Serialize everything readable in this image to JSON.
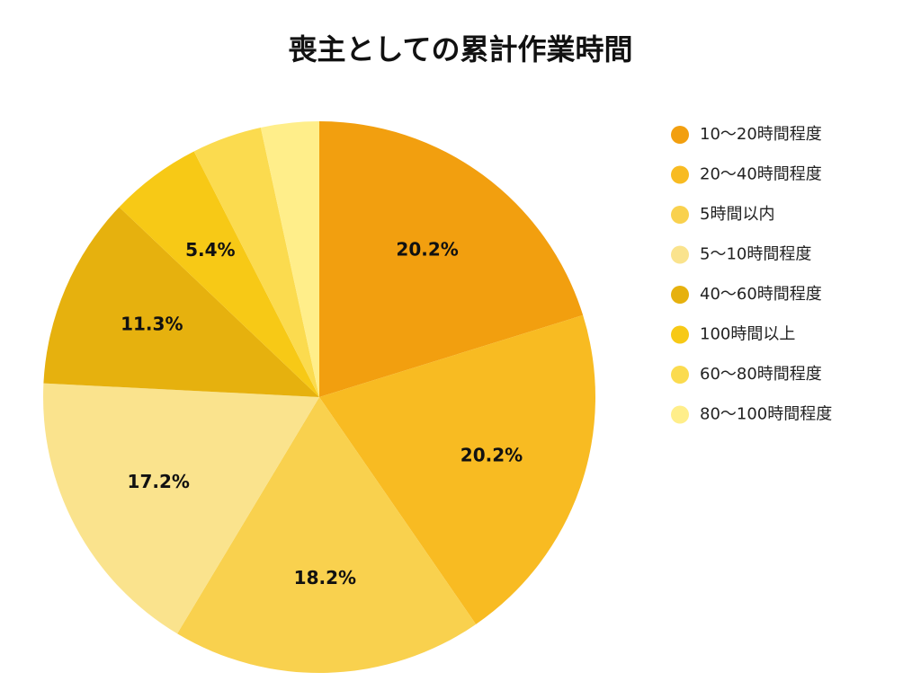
{
  "chart_data": {
    "type": "pie",
    "title": "喪主としての累計作業時間",
    "categories": [
      "10〜20時間程度",
      "20〜40時間程度",
      "5時間以内",
      "5〜10時間程度",
      "40〜60時間程度",
      "100時間以上",
      "60〜80時間程度",
      "80〜100時間程度"
    ],
    "values": [
      20.2,
      20.2,
      18.2,
      17.2,
      11.3,
      5.4,
      4.1,
      3.4
    ],
    "value_labels": [
      "20.2%",
      "20.2%",
      "18.2%",
      "17.2%",
      "11.3%",
      "5.4%",
      null,
      null
    ],
    "colors": [
      "#F29F0F",
      "#F8BB22",
      "#F9D14E",
      "#FAE38D",
      "#E6B10E",
      "#F7C916",
      "#FBDB4F",
      "#FFEE8A"
    ],
    "legend": "right"
  }
}
